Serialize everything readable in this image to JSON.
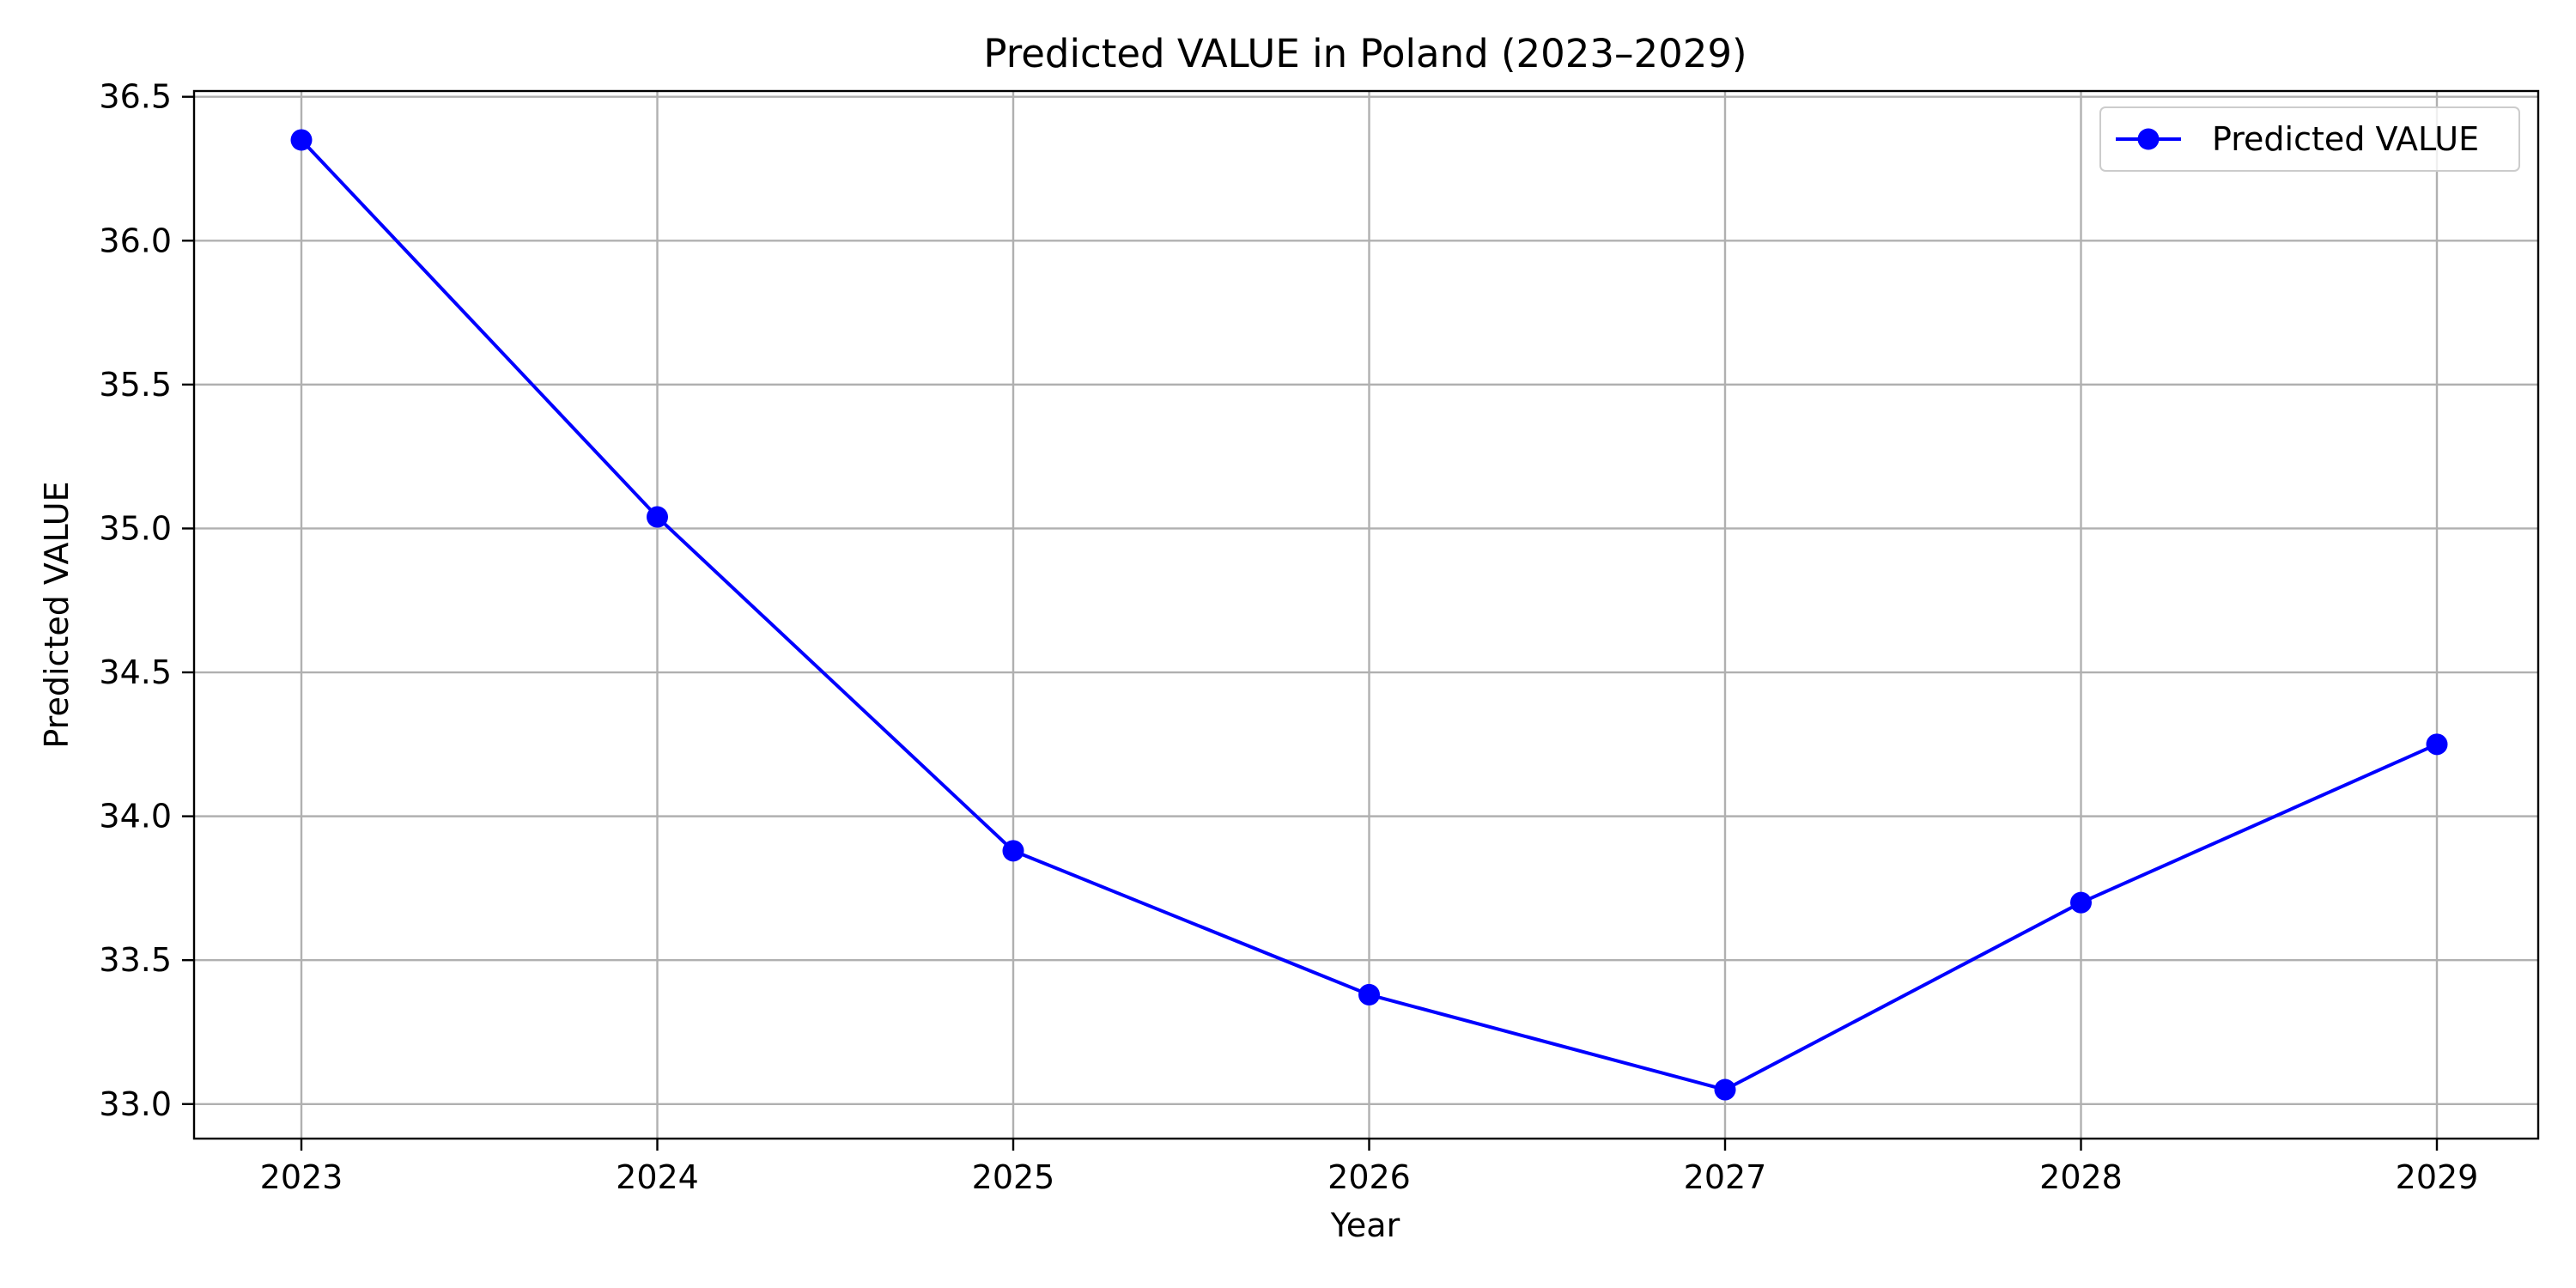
{
  "chart_data": {
    "type": "line",
    "title": "Predicted VALUE in Poland (2023–2029)",
    "xlabel": "Year",
    "ylabel": "Predicted VALUE",
    "x": [
      "2023",
      "2024",
      "2025",
      "2026",
      "2027",
      "2028",
      "2029"
    ],
    "series": [
      {
        "name": "Predicted VALUE",
        "values": [
          36.35,
          35.04,
          33.88,
          33.38,
          33.05,
          33.7,
          34.25
        ],
        "color": "#0000ff",
        "marker": "circle"
      }
    ],
    "ylim": [
      32.88,
      36.52
    ],
    "yticks": [
      "33.0",
      "33.5",
      "34.0",
      "34.5",
      "35.0",
      "35.5",
      "36.0",
      "36.5"
    ],
    "grid": true,
    "legend_position": "top-right"
  }
}
